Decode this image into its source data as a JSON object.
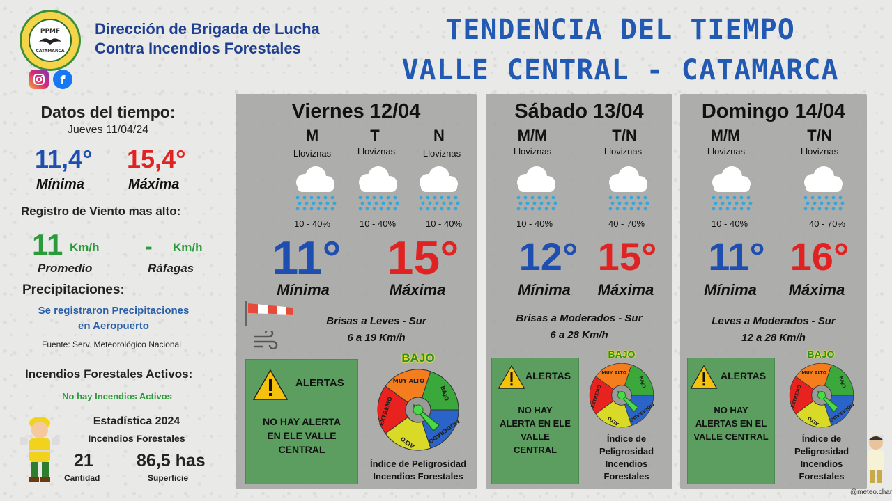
{
  "header": {
    "logo_text_top": "BRIGADA DE LUCHA CONTRA INCENDIOS FORESTALES",
    "logo_text_mid": "PPMF",
    "logo_text_bottom": "CATAMARCA",
    "org_line1": "Dirección de Brigada de Lucha",
    "org_line2": "Contra Incendios Forestales",
    "title_line1": "TENDENCIA DEL TIEMPO",
    "title_line2": "VALLE CENTRAL - CATAMARCA",
    "social": [
      "instagram-icon",
      "facebook-icon"
    ]
  },
  "observed": {
    "heading": "Datos del tiempo:",
    "date": "Jueves 11/04/24",
    "min_value": "11,4°",
    "max_value": "15,4°",
    "min_label": "Mínima",
    "max_label": "Máxima",
    "wind_heading": "Registro de Viento mas alto:",
    "wind_avg": "11",
    "wind_unit": "Km/h",
    "gust": "-",
    "gust_unit": "Km/h",
    "wind_avg_label": "Promedio",
    "gust_label": "Ráfagas",
    "precip_heading": "Precipitaciones:",
    "precip_text_1": "Se registraron Precipitaciones",
    "precip_text_2": "en Aeropuerto",
    "source": "Fuente: Serv. Meteorológico Nacional",
    "fires_heading": "Incendios Forestales Activos:",
    "fires_text": "No hay Incendios Activos",
    "stats_heading": "Estadística 2024",
    "stats_sub": "Incendios Forestales",
    "stats_count": "21",
    "stats_count_label": "Cantidad",
    "stats_area": "86,5 has",
    "stats_area_label": "Superficie"
  },
  "forecast": [
    {
      "day": "Viernes 12/04",
      "periods": [
        {
          "label": "M",
          "desc": "Lloviznas",
          "prob": "10 - 40%"
        },
        {
          "label": "T",
          "desc": "Lloviznas",
          "prob": "10 - 40%"
        },
        {
          "label": "N",
          "desc": "Lloviznas",
          "prob": "10 - 40%"
        }
      ],
      "min": "11°",
      "max": "15°",
      "min_label": "Mínima",
      "max_label": "Máxima",
      "wind_1": "Brisas a Leves - Sur",
      "wind_2": "6 a 19 Km/h",
      "alert_heading": "ALERTAS",
      "alert_lines": [
        "NO HAY ALERTA",
        "EN ELE VALLE",
        "CENTRAL"
      ],
      "danger_level": "BAJO",
      "index_lines": [
        "Índice de Peligrosidad",
        "Incendios Forestales"
      ]
    },
    {
      "day": "Sábado 13/04",
      "periods": [
        {
          "label": "M/M",
          "desc": "Lloviznas",
          "prob": "10 - 40%"
        },
        {
          "label": "T/N",
          "desc": "Lloviznas",
          "prob": "40 - 70%"
        }
      ],
      "min": "12°",
      "max": "15°",
      "min_label": "Mínima",
      "max_label": "Máxima",
      "wind_1": "Brisas a Moderados - Sur",
      "wind_2": "6 a 28 Km/h",
      "alert_heading": "ALERTAS",
      "alert_lines": [
        "NO HAY",
        "ALERTA EN ELE",
        "VALLE",
        "CENTRAL"
      ],
      "danger_level": "BAJO",
      "index_lines": [
        "Índice de",
        "Peligrosidad",
        "Incendios",
        "Forestales"
      ]
    },
    {
      "day": "Domingo 14/04",
      "periods": [
        {
          "label": "M/M",
          "desc": "Lloviznas",
          "prob": "10 - 40%"
        },
        {
          "label": "T/N",
          "desc": "Lloviznas",
          "prob": "40 - 70%"
        }
      ],
      "min": "11°",
      "max": "16°",
      "min_label": "Mínima",
      "max_label": "Máxima",
      "wind_1": "Leves a Moderados - Sur",
      "wind_2": "12 a 28 Km/h",
      "alert_heading": "ALERTAS",
      "alert_lines": [
        "NO HAY",
        "ALERTAS EN EL",
        "VALLE CENTRAL"
      ],
      "danger_level": "BAJO",
      "index_lines": [
        "Índice de",
        "Peligrosidad",
        "Incendios",
        "Forestales"
      ]
    }
  ],
  "gauge_labels": [
    "EXTREMO",
    "MUY ALTO",
    "BAJO",
    "MODERADO",
    "ALTO"
  ],
  "gauge_colors": [
    "#e8221f",
    "#f47d1e",
    "#3aa83a",
    "#2a64c8",
    "#d9d928"
  ],
  "credit": "@meteo.charly"
}
